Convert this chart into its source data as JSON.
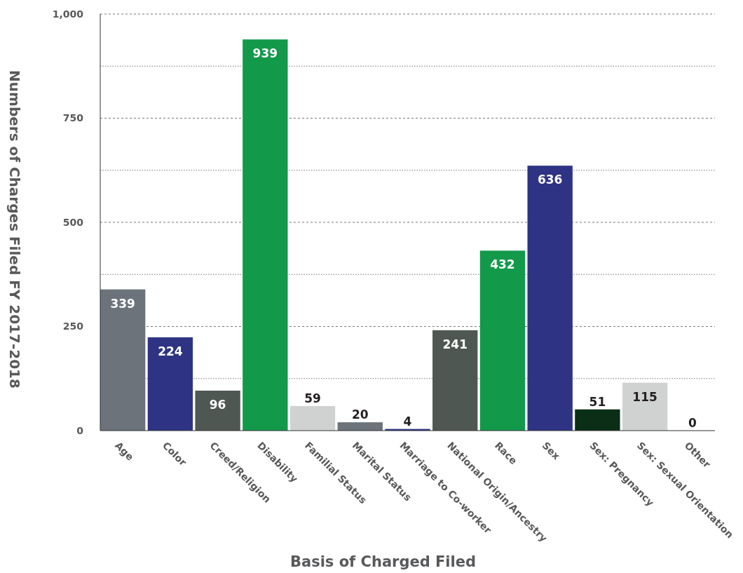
{
  "chart_data": {
    "type": "bar",
    "xlabel": "Basis of Charged Filed",
    "ylabel": "Numbers of Charges Filed FY 2017-2018",
    "categories": [
      "Age",
      "Color",
      "Creed/Religion",
      "Disability",
      "Familial Status",
      "Marital Status",
      "Marriage to Co-worker",
      "National Origin/Ancestry",
      "Race",
      "Sex",
      "Sex: Pregnancy",
      "Sex: Sexual Orientation",
      "Other"
    ],
    "values": [
      339,
      224,
      96,
      939,
      59,
      20,
      4,
      241,
      432,
      636,
      51,
      115,
      0
    ],
    "colors": [
      "#6d737a",
      "#2e3383",
      "#4f5753",
      "#12994a",
      "#d0d2d1",
      "#6d737a",
      "#2e3383",
      "#4f5753",
      "#12994a",
      "#2e3383",
      "#0b2e17",
      "#d0d2d1",
      "#d0d2d1"
    ],
    "ylim": [
      0,
      1000
    ],
    "yticks": [
      0,
      {
        "value": 125,
        "label": null
      },
      250,
      {
        "value": 375,
        "label": null
      },
      500,
      {
        "value": 625,
        "label": null
      },
      750,
      {
        "value": 875,
        "label": null
      },
      {
        "value": 1000,
        "label": "1,000"
      }
    ],
    "grid": "y",
    "data_labels": true
  }
}
